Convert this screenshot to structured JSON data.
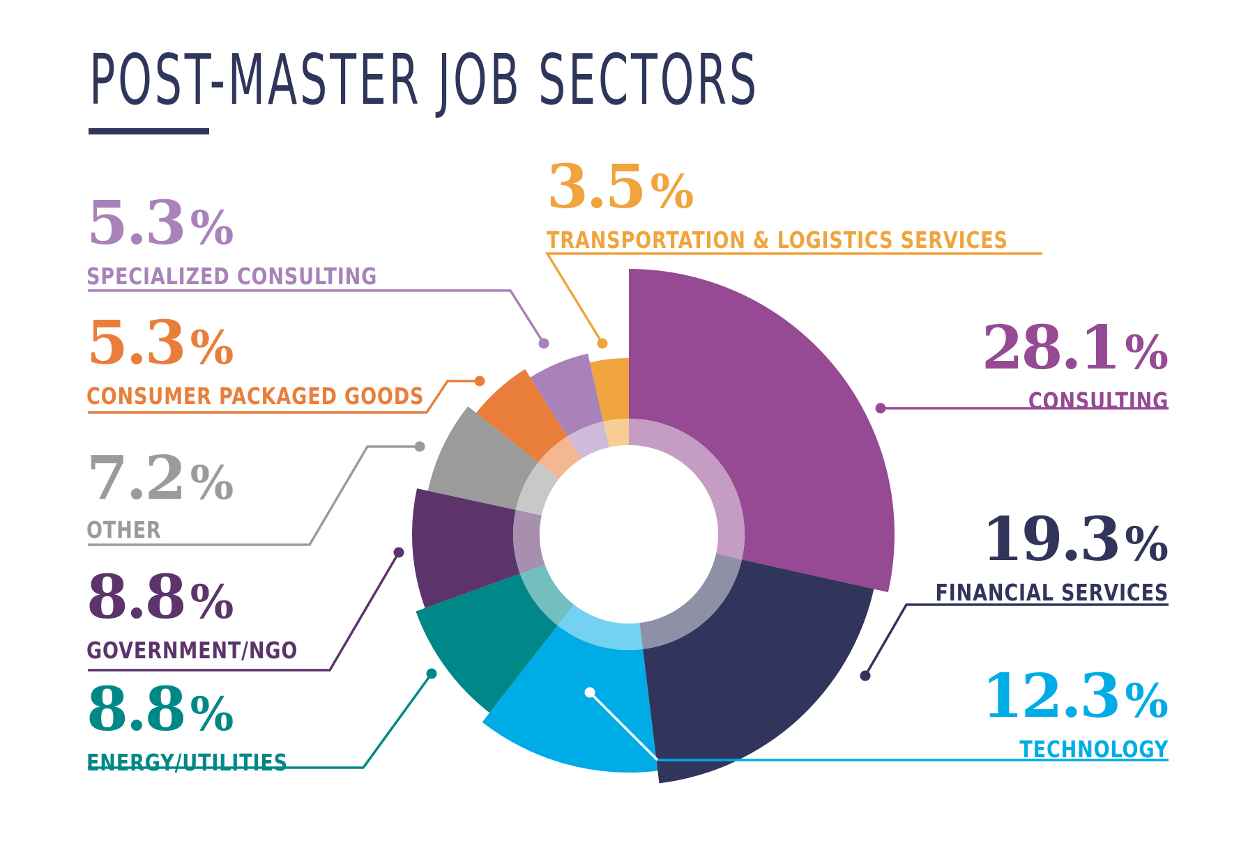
{
  "title": "POST-MASTER JOB SECTORS",
  "colors": {
    "title": "#30355a",
    "consulting": "#964a94",
    "financial_services": "#31355b",
    "technology": "#00ace6",
    "energy_utilities": "#008888",
    "government_ngo": "#5c346b",
    "other": "#9b9b9b",
    "consumer_packaged_goods": "#e97e3b",
    "specialized_consulting": "#a982b9",
    "transportation_logistics": "#f0a43e"
  },
  "labels": {
    "transport": {
      "value": "3.5",
      "symbol": "%",
      "name": "TRANSPORTATION & LOGISTICS SERVICES"
    },
    "specialized": {
      "value": "5.3",
      "symbol": "%",
      "name": "SPECIALIZED CONSULTING"
    },
    "cpg": {
      "value": "5.3",
      "symbol": "%",
      "name": "CONSUMER PACKAGED GOODS"
    },
    "other": {
      "value": "7.2",
      "symbol": "%",
      "name": "OTHER"
    },
    "government": {
      "value": "8.8",
      "symbol": "%",
      "name": "GOVERNMENT/NGO"
    },
    "energy": {
      "value": "8.8",
      "symbol": "%",
      "name": "ENERGY/UTILITIES"
    },
    "consulting": {
      "value": "28.1",
      "symbol": "%",
      "name": "CONSULTING"
    },
    "financial": {
      "value": "19.3",
      "symbol": "%",
      "name": "FINANCIAL SERVICES"
    },
    "technology": {
      "value": "12.3",
      "symbol": "%",
      "name": "TECHNOLOGY"
    }
  },
  "chart_data": {
    "type": "pie",
    "subtype": "variable-radius donut (nightingale-style)",
    "title": "POST-MASTER JOB SECTORS",
    "unit": "%",
    "categories": [
      "Consulting",
      "Financial Services",
      "Technology",
      "Energy/Utilities",
      "Government/NGO",
      "Other",
      "Consumer Packaged Goods",
      "Specialized Consulting",
      "Transportation & Logistics Services"
    ],
    "values": [
      28.1,
      19.3,
      12.3,
      8.8,
      8.8,
      7.2,
      5.3,
      5.3,
      3.5
    ],
    "colors": [
      "#964a94",
      "#31355b",
      "#00ace6",
      "#008888",
      "#5c346b",
      "#9b9b9b",
      "#e97e3b",
      "#a982b9",
      "#f0a43e"
    ],
    "direction": "clockwise from 12 o'clock",
    "legend": "callout labels with leader lines"
  }
}
